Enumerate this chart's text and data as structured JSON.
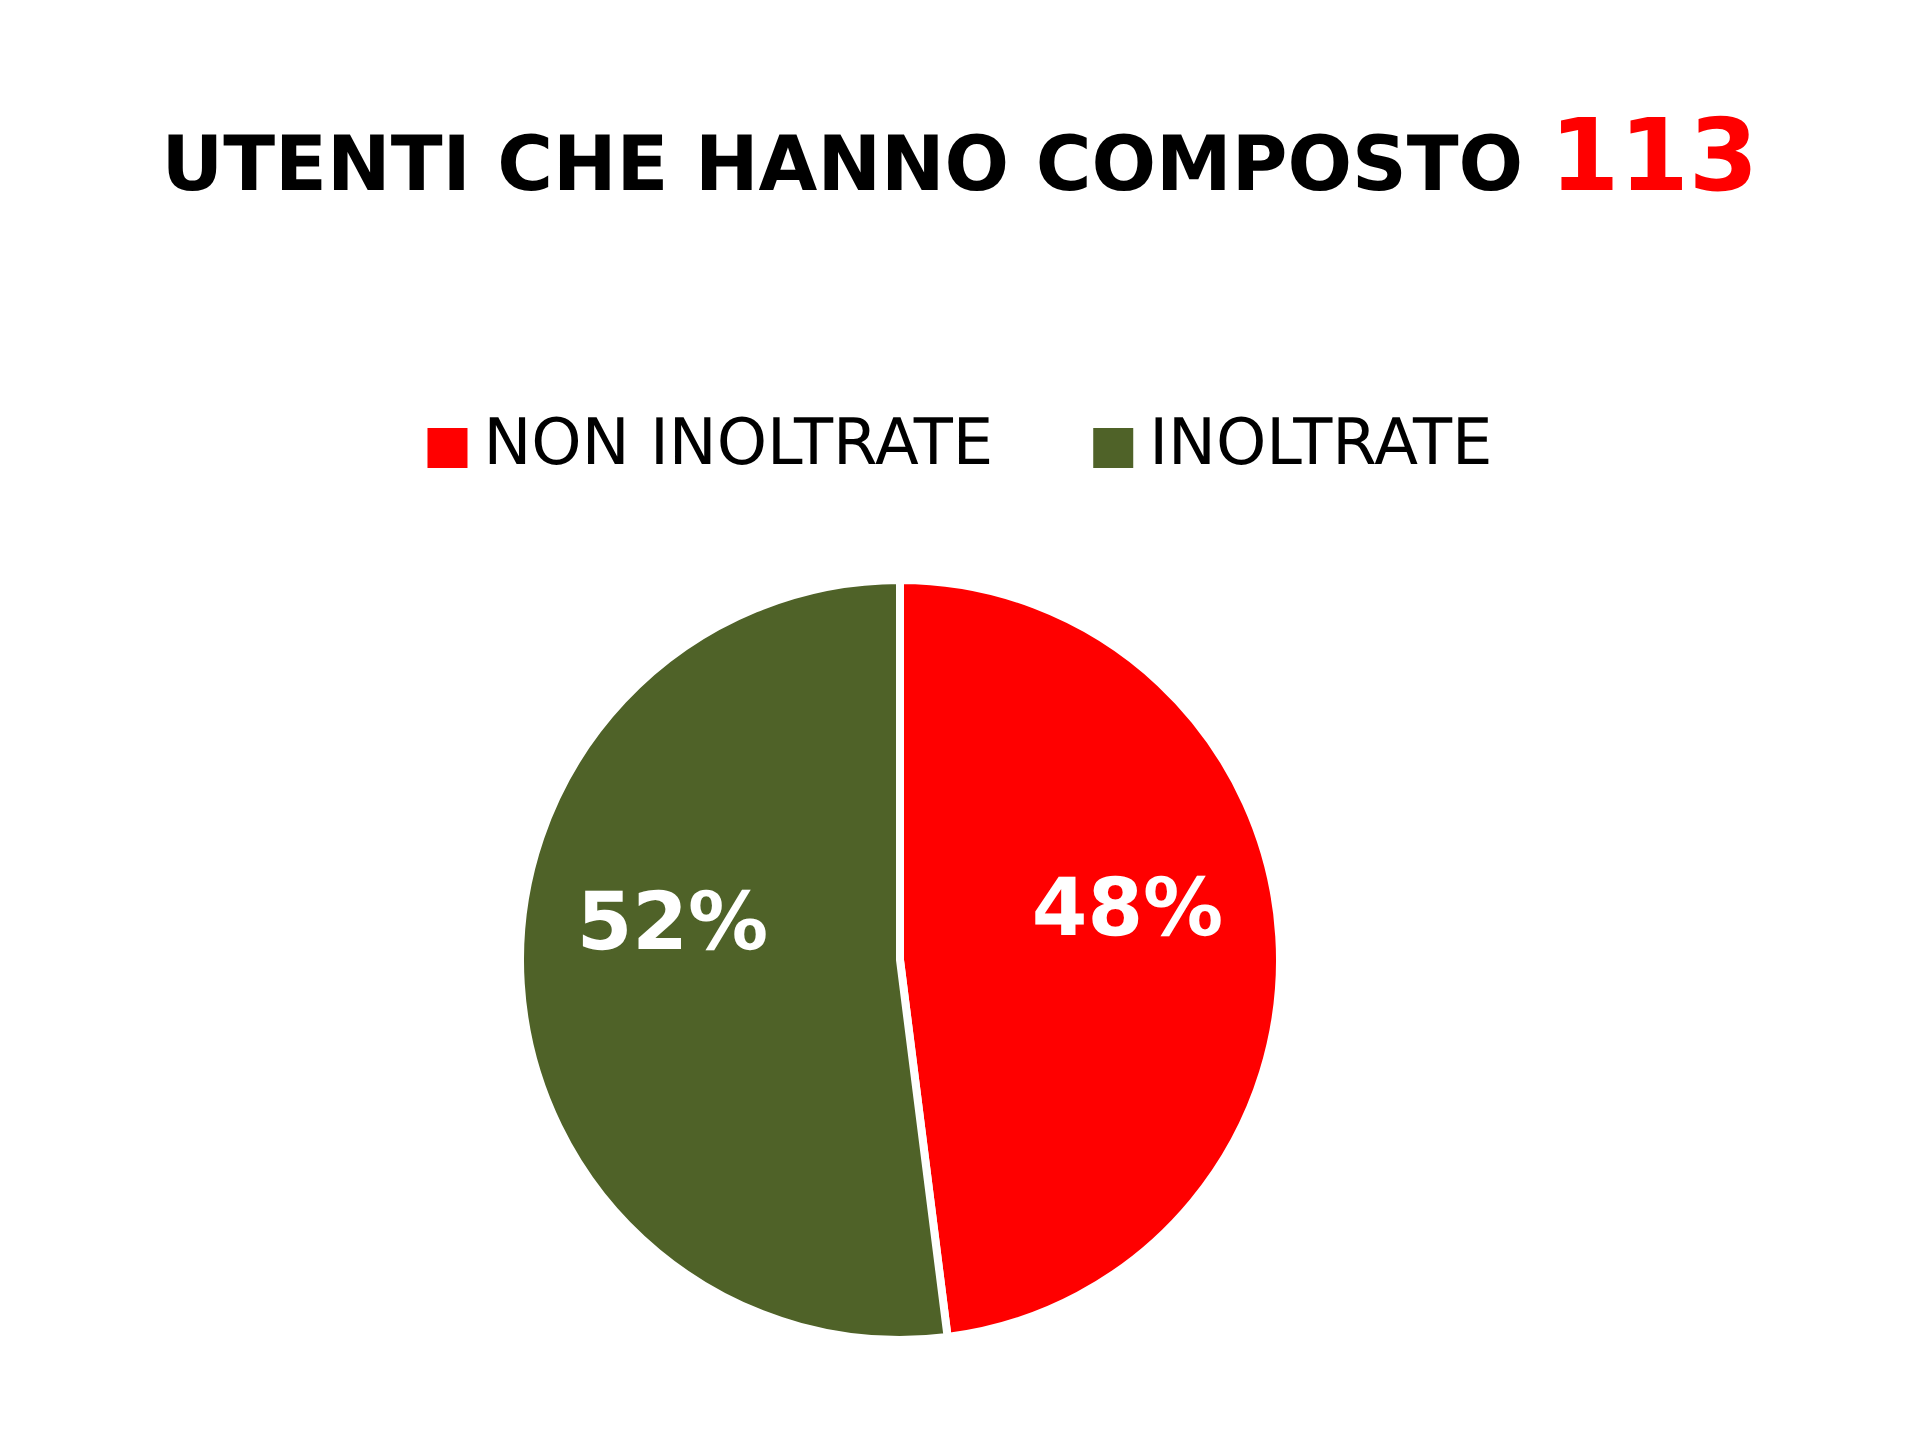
{
  "chart_data": {
    "type": "pie",
    "title": "UTENTI CHE HANNO COMPOSTO 113",
    "categories": [
      "NON INOLTRATE",
      "INOLTRATE"
    ],
    "values": [
      48,
      52
    ],
    "colors": [
      "#ff0000",
      "#4f6228"
    ],
    "value_labels": [
      "48%",
      "52%"
    ],
    "legend": "top"
  }
}
